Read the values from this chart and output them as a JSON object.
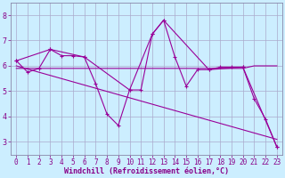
{
  "bg_color": "#cceeff",
  "line_color": "#990099",
  "grid_color": "#aaaacc",
  "xlim": [
    -0.5,
    23.5
  ],
  "ylim": [
    2.5,
    8.5
  ],
  "xticks": [
    0,
    1,
    2,
    3,
    4,
    5,
    6,
    7,
    8,
    9,
    10,
    11,
    12,
    13,
    14,
    15,
    16,
    17,
    18,
    19,
    20,
    21,
    22,
    23
  ],
  "yticks": [
    3,
    4,
    5,
    6,
    7,
    8
  ],
  "xlabel": "Windchill (Refroidissement éolien,°C)",
  "series1_x": [
    0,
    1,
    2,
    3,
    4,
    5,
    6,
    7,
    8,
    9,
    10,
    11,
    12,
    13,
    14,
    15,
    16,
    17,
    18,
    19,
    20,
    21,
    22,
    23
  ],
  "series1_y": [
    6.2,
    5.75,
    5.9,
    6.65,
    6.4,
    6.4,
    6.35,
    5.3,
    4.1,
    3.65,
    5.05,
    5.05,
    7.25,
    7.8,
    6.35,
    5.2,
    5.85,
    5.85,
    5.95,
    5.95,
    5.95,
    4.7,
    3.9,
    2.8
  ],
  "series2_x": [
    0,
    3,
    6,
    10,
    12,
    13,
    17,
    20,
    23
  ],
  "series2_y": [
    6.2,
    6.65,
    6.35,
    5.05,
    7.25,
    7.8,
    5.85,
    5.95,
    2.8
  ],
  "series3_x": [
    0,
    11,
    12,
    17,
    18,
    19,
    20,
    21,
    23
  ],
  "series3_y": [
    5.9,
    5.9,
    5.9,
    5.9,
    5.9,
    5.9,
    5.9,
    6.0,
    6.0
  ],
  "series4_x": [
    0,
    23
  ],
  "series4_y": [
    6.0,
    3.1
  ],
  "tick_fontsize": 5.5,
  "label_fontsize": 6.0
}
